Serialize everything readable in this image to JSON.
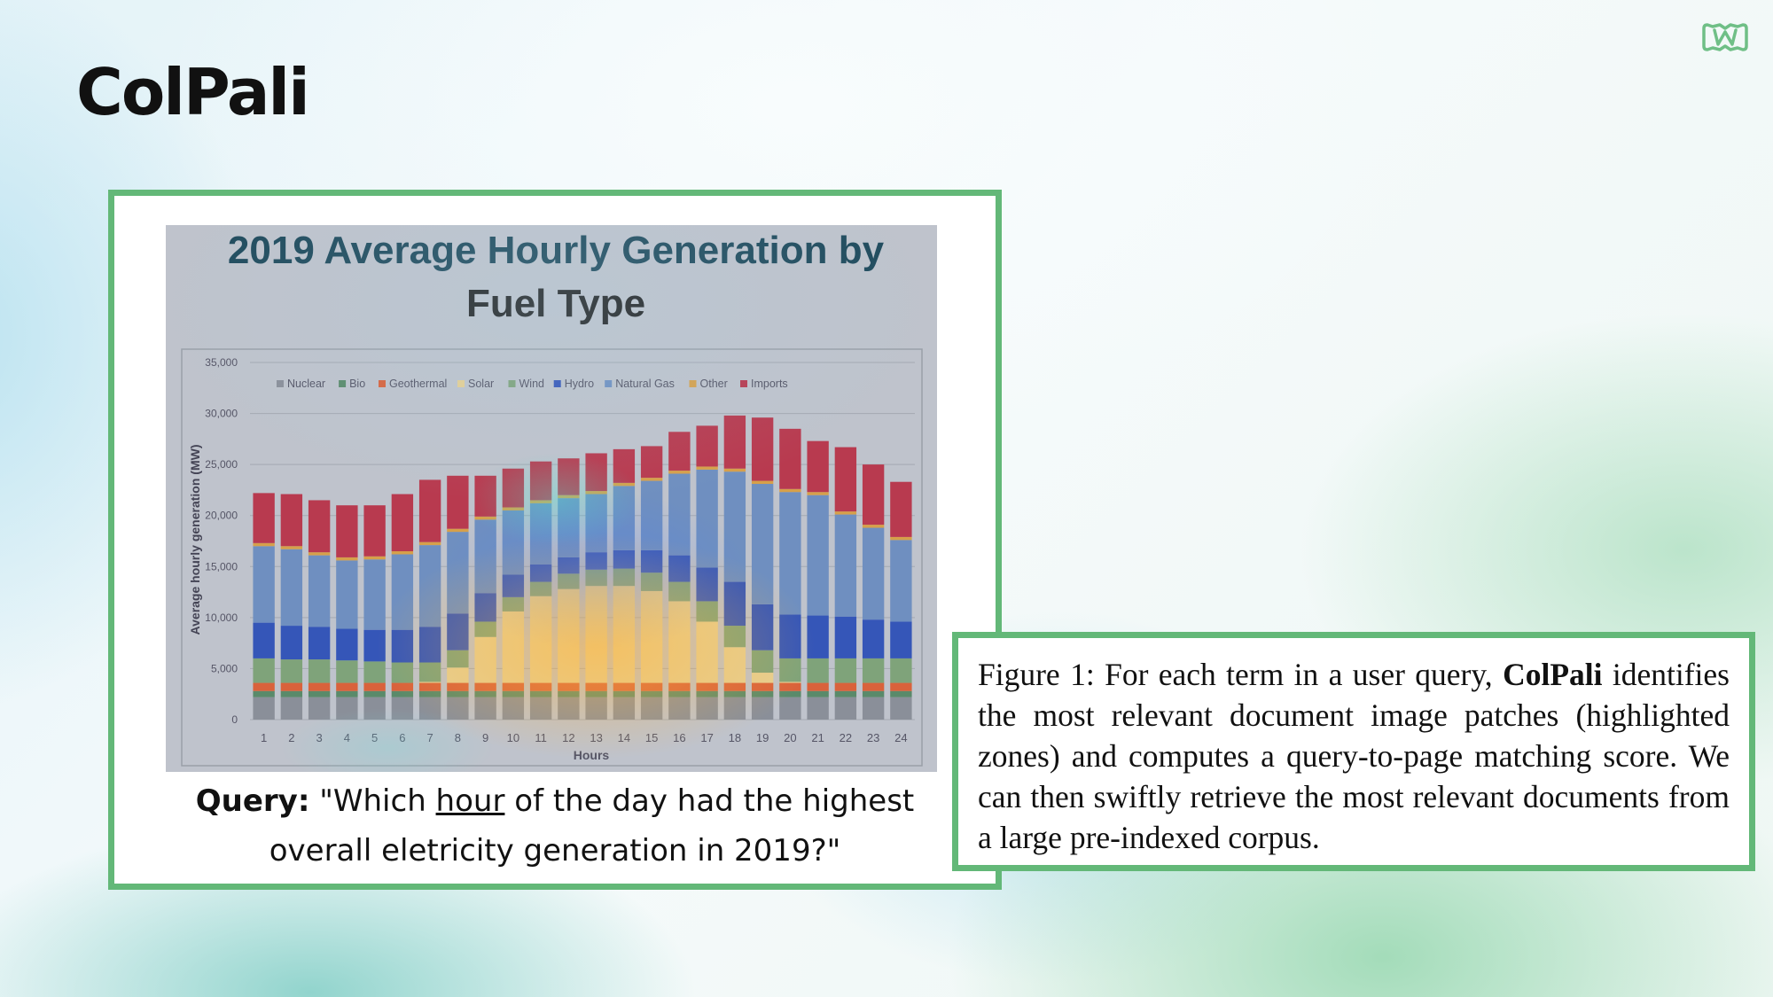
{
  "slide": {
    "title": "ColPali",
    "logo_icon": "brand-logo-icon",
    "accent_color": "#63b878"
  },
  "figure": {
    "query_label": "Query:",
    "query_text_1": " \"Which ",
    "query_underlined": "hour",
    "query_text_2": " of the day had the highest",
    "query_line_2": "overall eletricity generation in 2019?\""
  },
  "caption": {
    "prefix": "Figure 1: For each term in a user query, ",
    "bold": "ColPali",
    "text": " identifies the most relevant document image patches (highlighted zones) and computes a query-to-page matching score.  We can then swiftly retrieve the most relevant documents from a large pre-indexed corpus."
  },
  "chart_data": {
    "type": "bar",
    "stacked": true,
    "title": "2019 Average Hourly Generation by Fuel Type",
    "title_line_1": "2019 Average Hourly Generation by",
    "title_line_2": "Fuel Type",
    "xlabel": "Hours",
    "ylabel": "Average hourly generation (MW)",
    "ylim": [
      0,
      35000
    ],
    "yticks": [
      "0",
      "5,000",
      "10,000",
      "15,000",
      "20,000",
      "25,000",
      "30,000",
      "35,000"
    ],
    "legend_position": "top",
    "grid": true,
    "categories": [
      "1",
      "2",
      "3",
      "4",
      "5",
      "6",
      "7",
      "8",
      "9",
      "10",
      "11",
      "12",
      "13",
      "14",
      "15",
      "16",
      "17",
      "18",
      "19",
      "20",
      "21",
      "22",
      "23",
      "24"
    ],
    "series": [
      {
        "name": "Nuclear",
        "color": "#8a8f99",
        "values": [
          2200,
          2200,
          2200,
          2200,
          2200,
          2200,
          2200,
          2200,
          2200,
          2200,
          2200,
          2200,
          2200,
          2200,
          2200,
          2200,
          2200,
          2200,
          2200,
          2200,
          2200,
          2200,
          2200,
          2200
        ]
      },
      {
        "name": "Bio",
        "color": "#5a8a6a",
        "values": [
          600,
          600,
          600,
          600,
          600,
          600,
          600,
          600,
          600,
          600,
          600,
          600,
          600,
          600,
          600,
          600,
          600,
          600,
          600,
          600,
          600,
          600,
          600,
          600
        ]
      },
      {
        "name": "Geothermal",
        "color": "#d9623b",
        "values": [
          800,
          800,
          800,
          800,
          800,
          800,
          800,
          800,
          800,
          800,
          800,
          800,
          800,
          800,
          800,
          800,
          800,
          800,
          800,
          800,
          800,
          800,
          800,
          800
        ]
      },
      {
        "name": "Solar",
        "color": "#e6cf92",
        "values": [
          0,
          0,
          0,
          0,
          0,
          0,
          100,
          1500,
          4500,
          7000,
          8500,
          9200,
          9500,
          9500,
          9000,
          8000,
          6000,
          3500,
          1000,
          100,
          0,
          0,
          0,
          0
        ]
      },
      {
        "name": "Wind",
        "color": "#7fa37a",
        "values": [
          2400,
          2300,
          2300,
          2200,
          2100,
          2000,
          1900,
          1700,
          1500,
          1400,
          1400,
          1500,
          1600,
          1700,
          1800,
          1900,
          2000,
          2100,
          2200,
          2300,
          2400,
          2400,
          2400,
          2400
        ]
      },
      {
        "name": "Hydro",
        "color": "#3556b8",
        "values": [
          3500,
          3300,
          3200,
          3100,
          3100,
          3200,
          3500,
          3600,
          2800,
          2200,
          1700,
          1600,
          1700,
          1800,
          2200,
          2600,
          3300,
          4300,
          4500,
          4300,
          4200,
          4100,
          3800,
          3600
        ]
      },
      {
        "name": "Natural Gas",
        "color": "#6f8fc0",
        "values": [
          7500,
          7500,
          7000,
          6700,
          6900,
          7400,
          8000,
          8000,
          7200,
          6300,
          6000,
          5800,
          5700,
          6300,
          6800,
          8000,
          9600,
          10800,
          11800,
          12000,
          11800,
          10000,
          9000,
          8000
        ]
      },
      {
        "name": "Other",
        "color": "#d6a04a",
        "values": [
          300,
          300,
          300,
          300,
          300,
          300,
          300,
          300,
          300,
          300,
          300,
          300,
          300,
          300,
          300,
          300,
          300,
          300,
          300,
          300,
          300,
          300,
          300,
          300
        ]
      },
      {
        "name": "Imports",
        "color": "#b83a4f",
        "values": [
          4900,
          5100,
          5100,
          5100,
          5000,
          5600,
          6100,
          5200,
          4000,
          3800,
          3800,
          3600,
          3700,
          3300,
          3100,
          3800,
          4000,
          5200,
          6200,
          5900,
          5000,
          6300,
          5900,
          5400
        ]
      }
    ]
  }
}
